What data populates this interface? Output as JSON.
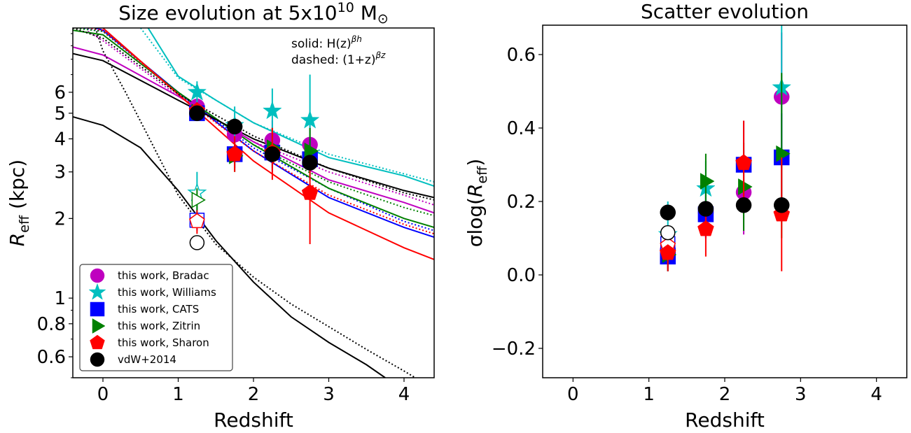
{
  "colors": {
    "Bradac": "#bf00bf",
    "Williams": "#00bfbf",
    "CATS": "#0000ff",
    "Zitrin": "#008000",
    "Sharon": "#ff0000",
    "vdW": "#000000"
  },
  "chart_data": [
    {
      "type": "scatter",
      "title": "Size evolution at 5x10¹⁰ M☉",
      "title_main": "Size evolution at 5x10",
      "title_sup": "10",
      "title_tail": " M",
      "title_sym": "⊙",
      "xlabel": "Redshift",
      "ylabel": "R_eff (kpc)",
      "ylabel_main": "R",
      "ylabel_sub": "eff",
      "ylabel_tail": " (kpc)",
      "xlim": [
        -0.4,
        4.4
      ],
      "ylim": [
        0.5,
        10.5
      ],
      "yscale": "log",
      "xticks": [
        0,
        1,
        2,
        3,
        4
      ],
      "xtick_labels": [
        "0",
        "1",
        "2",
        "3",
        "4"
      ],
      "yticks": [
        0.6,
        0.8,
        1,
        2,
        3,
        4,
        5,
        6
      ],
      "ytick_labels": [
        "0.6",
        "0.8",
        "1",
        "2",
        "3",
        "4",
        "5",
        "6"
      ],
      "annotation": {
        "solid_label": "solid: H(z)",
        "solid_sup": "βh",
        "dashed_label": "dashed: (1+z)",
        "dashed_sup": "βz"
      },
      "legend_position": "lower-left",
      "legend": [
        {
          "label": "this work, Bradac",
          "marker": "circle",
          "color_key": "Bradac"
        },
        {
          "label": "this work, Williams",
          "marker": "star",
          "color_key": "Williams"
        },
        {
          "label": "this work, CATS",
          "marker": "square",
          "color_key": "CATS"
        },
        {
          "label": "this work, Zitrin",
          "marker": "triangle-right",
          "color_key": "Zitrin"
        },
        {
          "label": "this work, Sharon",
          "marker": "pentagon",
          "color_key": "Sharon"
        },
        {
          "label": "vdW+2014",
          "marker": "circle",
          "color_key": "vdW"
        }
      ],
      "series": [
        {
          "name": "this work, Bradac",
          "marker": "circle",
          "color_key": "Bradac",
          "points": [
            {
              "x": 1.25,
              "y": 5.3,
              "lo": 4.9,
              "hi": 5.6
            },
            {
              "x": 1.75,
              "y": 4.15,
              "lo": 3.7,
              "hi": 4.7
            },
            {
              "x": 2.25,
              "y": 3.95,
              "lo": 3.3,
              "hi": 4.7
            },
            {
              "x": 2.75,
              "y": 3.8,
              "lo": 3.0,
              "hi": 4.7
            }
          ],
          "curve_solid": [
            [
              -0.4,
              8.9
            ],
            [
              0,
              8.3
            ],
            [
              1,
              5.8
            ],
            [
              2,
              3.9
            ],
            [
              3,
              2.8
            ],
            [
              4,
              2.3
            ],
            [
              4.4,
              2.1
            ]
          ],
          "curve_dashed": [
            [
              -0.2,
              10.2
            ],
            [
              0,
              9.4
            ],
            [
              1,
              5.8
            ],
            [
              2,
              3.9
            ],
            [
              3,
              3.0
            ],
            [
              4,
              2.45
            ],
            [
              4.4,
              2.25
            ]
          ]
        },
        {
          "name": "this work, Williams",
          "marker": "star",
          "color_key": "Williams",
          "points": [
            {
              "x": 1.25,
              "y": 6.0,
              "lo": 5.4,
              "hi": 6.6
            },
            {
              "x": 1.75,
              "y": 4.5,
              "lo": 3.9,
              "hi": 5.3
            },
            {
              "x": 2.25,
              "y": 5.1,
              "lo": 4.2,
              "hi": 6.2
            },
            {
              "x": 2.75,
              "y": 4.7,
              "lo": 3.3,
              "hi": 7.0
            }
          ],
          "curve_solid": [
            [
              0.6,
              10.5
            ],
            [
              1,
              6.9
            ],
            [
              1.5,
              5.6
            ],
            [
              2,
              4.6
            ],
            [
              3,
              3.4
            ],
            [
              4,
              2.9
            ],
            [
              4.4,
              2.65
            ]
          ],
          "curve_dashed": [
            [
              0.5,
              10.5
            ],
            [
              1,
              6.8
            ],
            [
              1.5,
              5.6
            ],
            [
              2,
              4.6
            ],
            [
              3,
              3.5
            ],
            [
              4,
              2.95
            ],
            [
              4.4,
              2.75
            ]
          ],
          "open_point": {
            "x": 1.25,
            "y": 2.5,
            "lo": 2.1,
            "hi": 3.0
          }
        },
        {
          "name": "this work, CATS",
          "marker": "square",
          "color_key": "CATS",
          "points": [
            {
              "x": 1.25,
              "y": 5.0,
              "lo": 4.7,
              "hi": 5.4
            },
            {
              "x": 1.75,
              "y": 3.5,
              "lo": 3.1,
              "hi": 4.0
            },
            {
              "x": 2.25,
              "y": 3.55,
              "lo": 3.0,
              "hi": 4.2
            },
            {
              "x": 2.75,
              "y": 3.35,
              "lo": 2.8,
              "hi": 4.0
            }
          ],
          "curve_solid": [
            [
              -0.1,
              10.5
            ],
            [
              0,
              10.3
            ],
            [
              1,
              6.0
            ],
            [
              2,
              3.6
            ],
            [
              3,
              2.4
            ],
            [
              4,
              1.85
            ],
            [
              4.4,
              1.7
            ]
          ],
          "curve_dashed": [
            [
              -0.3,
              10.5
            ],
            [
              0,
              10.2
            ],
            [
              1,
              6.0
            ],
            [
              2,
              3.7
            ],
            [
              3,
              2.6
            ],
            [
              4,
              1.95
            ],
            [
              4.4,
              1.8
            ]
          ],
          "open_point": {
            "x": 1.25,
            "y": 1.97,
            "lo": 1.8,
            "hi": 2.15
          }
        },
        {
          "name": "this work, Zitrin",
          "marker": "triangle-right",
          "color_key": "Zitrin",
          "points": [
            {
              "x": 1.25,
              "y": 5.05,
              "lo": 4.7,
              "hi": 5.5
            },
            {
              "x": 1.75,
              "y": 3.45,
              "lo": 3.0,
              "hi": 3.9
            },
            {
              "x": 2.25,
              "y": 3.7,
              "lo": 3.1,
              "hi": 4.4
            },
            {
              "x": 2.75,
              "y": 3.6,
              "lo": 2.9,
              "hi": 4.4
            }
          ],
          "curve_solid": [
            [
              -0.4,
              10.3
            ],
            [
              0,
              9.9
            ],
            [
              1,
              6.0
            ],
            [
              2,
              3.8
            ],
            [
              3,
              2.6
            ],
            [
              4,
              2.0
            ],
            [
              4.4,
              1.85
            ]
          ],
          "curve_dashed": [
            [
              -0.4,
              10.5
            ],
            [
              0,
              10.2
            ],
            [
              1,
              6.0
            ],
            [
              2,
              3.8
            ],
            [
              3,
              2.75
            ],
            [
              4,
              2.2
            ],
            [
              4.4,
              2.05
            ]
          ],
          "open_point": {
            "x": 1.25,
            "y": 2.35,
            "lo": 2.1,
            "hi": 2.6
          }
        },
        {
          "name": "this work, Sharon",
          "marker": "pentagon",
          "color_key": "Sharon",
          "points": [
            {
              "x": 1.25,
              "y": 5.1,
              "lo": 4.7,
              "hi": 5.5
            },
            {
              "x": 1.75,
              "y": 3.5,
              "lo": 3.0,
              "hi": 4.1
            },
            {
              "x": 2.25,
              "y": 3.55,
              "lo": 2.8,
              "hi": 4.4
            },
            {
              "x": 2.75,
              "y": 2.5,
              "lo": 1.6,
              "hi": 3.4
            }
          ],
          "curve_solid": [
            [
              0,
              10.5
            ],
            [
              1,
              5.9
            ],
            [
              2,
              3.3
            ],
            [
              3,
              2.1
            ],
            [
              4,
              1.55
            ],
            [
              4.4,
              1.4
            ]
          ],
          "curve_dashed": [
            [
              -0.2,
              10.5
            ],
            [
              0,
              10.3
            ],
            [
              1,
              5.9
            ],
            [
              2,
              3.6
            ],
            [
              3,
              2.45
            ],
            [
              4,
              1.9
            ],
            [
              4.4,
              1.75
            ]
          ],
          "open_point": {
            "x": 1.25,
            "y": 1.95,
            "lo": 1.75,
            "hi": 2.15
          }
        },
        {
          "name": "vdW+2014",
          "marker": "circle",
          "color_key": "vdW",
          "points": [
            {
              "x": 1.25,
              "y": 5.0,
              "lo": 4.8,
              "hi": 5.2
            },
            {
              "x": 1.75,
              "y": 4.45,
              "lo": 4.25,
              "hi": 4.65
            },
            {
              "x": 2.25,
              "y": 3.5,
              "lo": 3.35,
              "hi": 3.65
            },
            {
              "x": 2.75,
              "y": 3.25,
              "lo": 3.1,
              "hi": 3.4
            }
          ],
          "curve_solid": [
            [
              -0.4,
              8.4
            ],
            [
              0,
              7.9
            ],
            [
              1,
              5.6
            ],
            [
              2,
              4.0
            ],
            [
              3,
              3.1
            ],
            [
              4,
              2.55
            ],
            [
              4.4,
              2.4
            ]
          ],
          "curve_dashed": [
            [
              -0.4,
              10.5
            ],
            [
              0,
              9.6
            ],
            [
              1,
              5.9
            ],
            [
              2,
              4.1
            ],
            [
              3,
              3.1
            ],
            [
              4,
              2.5
            ],
            [
              4.4,
              2.35
            ]
          ],
          "open_point": {
            "x": 1.25,
            "y": 1.62,
            "lo": 1.62,
            "hi": 1.62
          },
          "curve2_solid": [
            [
              -0.4,
              4.85
            ],
            [
              0,
              4.5
            ],
            [
              0.5,
              3.7
            ],
            [
              1,
              2.55
            ],
            [
              1.5,
              1.65
            ],
            [
              2,
              1.15
            ],
            [
              2.5,
              0.85
            ],
            [
              3,
              0.68
            ],
            [
              3.5,
              0.56
            ],
            [
              3.75,
              0.5
            ]
          ],
          "curve2_dashed": [
            [
              -0.1,
              10.5
            ],
            [
              0,
              8.6
            ],
            [
              0.3,
              6.0
            ],
            [
              0.6,
              4.1
            ],
            [
              1,
              2.45
            ],
            [
              1.5,
              1.6
            ],
            [
              2,
              1.2
            ],
            [
              2.5,
              0.95
            ],
            [
              3,
              0.78
            ],
            [
              3.5,
              0.64
            ],
            [
              4,
              0.53
            ],
            [
              4.15,
              0.5
            ]
          ]
        }
      ]
    },
    {
      "type": "scatter",
      "title": "Scatter evolution",
      "xlabel": "Redshift",
      "ylabel": "σlog(R_eff)",
      "ylabel_main": "σlog(",
      "ylabel_r": "R",
      "ylabel_sub": "eff",
      "ylabel_tail": ")",
      "xlim": [
        -0.4,
        4.4
      ],
      "ylim": [
        -0.28,
        0.68
      ],
      "xticks": [
        0,
        1,
        2,
        3,
        4
      ],
      "xtick_labels": [
        "0",
        "1",
        "2",
        "3",
        "4"
      ],
      "yticks": [
        -0.2,
        0.0,
        0.2,
        0.4,
        0.6
      ],
      "ytick_labels": [
        "−0.2",
        "0.0",
        "0.2",
        "0.4",
        "0.6"
      ],
      "series": [
        {
          "name": "this work, Bradac",
          "marker": "circle",
          "color_key": "Bradac",
          "points": [
            {
              "x": 1.25,
              "y": 0.07,
              "lo": 0.02,
              "hi": 0.12
            },
            {
              "x": 1.75,
              "y": 0.17,
              "lo": 0.1,
              "hi": 0.24
            },
            {
              "x": 2.25,
              "y": 0.225,
              "lo": 0.11,
              "hi": 0.34
            },
            {
              "x": 2.75,
              "y": 0.485,
              "lo": 0.3,
              "hi": 0.66
            }
          ]
        },
        {
          "name": "this work, Williams",
          "marker": "star",
          "color_key": "Williams",
          "points": [
            {
              "x": 1.75,
              "y": 0.235,
              "lo": 0.16,
              "hi": 0.31
            },
            {
              "x": 2.75,
              "y": 0.51,
              "lo": 0.32,
              "hi": 0.68
            }
          ],
          "open_point": {
            "x": 1.25,
            "y": 0.11,
            "lo": 0.05,
            "hi": 0.2
          }
        },
        {
          "name": "this work, CATS",
          "marker": "square",
          "color_key": "CATS",
          "points": [
            {
              "x": 1.25,
              "y": 0.05,
              "lo": 0.01,
              "hi": 0.1
            },
            {
              "x": 1.75,
              "y": 0.165,
              "lo": 0.1,
              "hi": 0.23
            },
            {
              "x": 2.25,
              "y": 0.3,
              "lo": 0.18,
              "hi": 0.42
            },
            {
              "x": 2.75,
              "y": 0.32,
              "lo": 0.2,
              "hi": 0.44
            }
          ],
          "open_point": {
            "x": 1.25,
            "y": 0.085,
            "lo": 0.085,
            "hi": 0.085
          }
        },
        {
          "name": "this work, Zitrin",
          "marker": "triangle-right",
          "color_key": "Zitrin",
          "points": [
            {
              "x": 1.25,
              "y": 0.055,
              "lo": 0.01,
              "hi": 0.1
            },
            {
              "x": 1.75,
              "y": 0.255,
              "lo": 0.18,
              "hi": 0.33
            },
            {
              "x": 2.25,
              "y": 0.24,
              "lo": 0.12,
              "hi": 0.36
            },
            {
              "x": 2.75,
              "y": 0.33,
              "lo": 0.1,
              "hi": 0.55
            }
          ]
        },
        {
          "name": "this work, Sharon",
          "marker": "pentagon",
          "color_key": "Sharon",
          "points": [
            {
              "x": 1.25,
              "y": 0.06,
              "lo": 0.01,
              "hi": 0.11
            },
            {
              "x": 1.75,
              "y": 0.125,
              "lo": 0.05,
              "hi": 0.2
            },
            {
              "x": 2.25,
              "y": 0.305,
              "lo": 0.19,
              "hi": 0.42
            },
            {
              "x": 2.75,
              "y": 0.165,
              "lo": 0.01,
              "hi": 0.32
            }
          ],
          "open_point": {
            "x": 1.25,
            "y": 0.08,
            "lo": 0.08,
            "hi": 0.08
          }
        },
        {
          "name": "vdW+2014",
          "marker": "circle",
          "color_key": "vdW",
          "points": [
            {
              "x": 1.25,
              "y": 0.17,
              "lo": 0.17,
              "hi": 0.17
            },
            {
              "x": 1.75,
              "y": 0.18,
              "lo": 0.18,
              "hi": 0.18
            },
            {
              "x": 2.25,
              "y": 0.19,
              "lo": 0.19,
              "hi": 0.19
            },
            {
              "x": 2.75,
              "y": 0.19,
              "lo": 0.19,
              "hi": 0.19
            }
          ],
          "open_point": {
            "x": 1.25,
            "y": 0.115,
            "lo": 0.115,
            "hi": 0.115
          }
        }
      ]
    }
  ]
}
